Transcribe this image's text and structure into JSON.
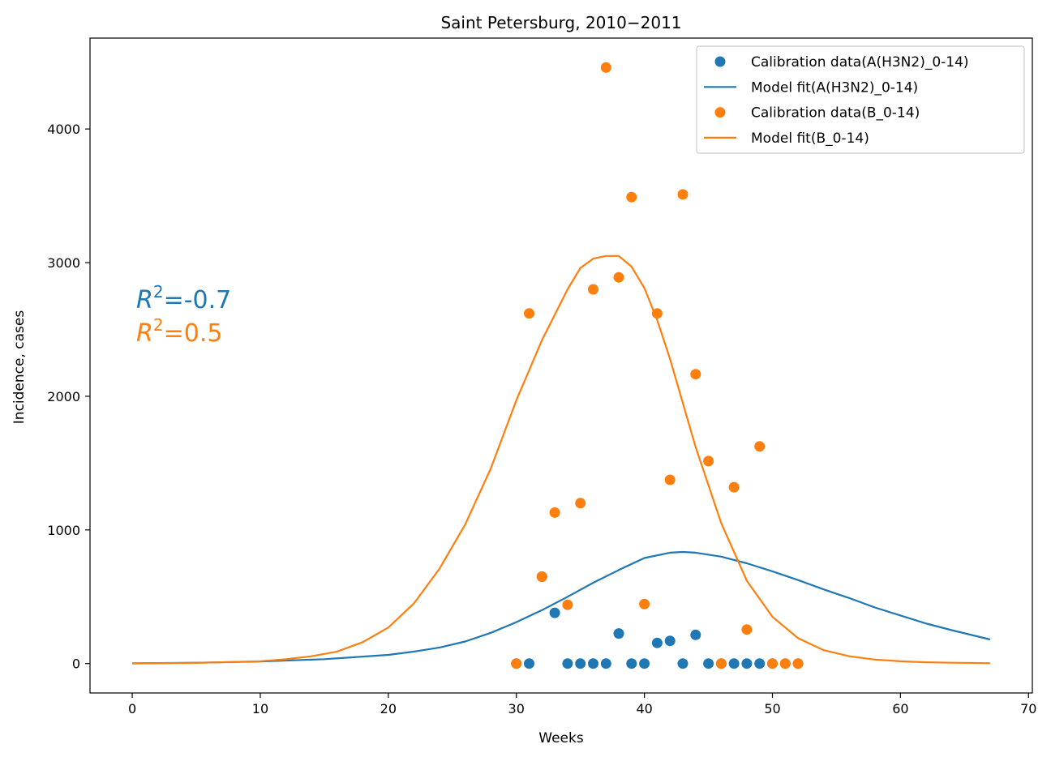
{
  "chart_data": {
    "type": "scatter",
    "title": "Saint Petersburg, 2010−2011",
    "xlabel": "Weeks",
    "ylabel": "Incidence, cases",
    "xlim": [
      -3.3,
      70.3
    ],
    "ylim": [
      -220,
      4680
    ],
    "xticks": [
      0,
      10,
      20,
      30,
      40,
      50,
      60,
      70
    ],
    "yticks": [
      0,
      1000,
      2000,
      3000,
      4000
    ],
    "grid": false,
    "legend_position": "top-right",
    "colors": {
      "blue": "#1f77b4",
      "orange": "#ff7f0e"
    },
    "series": [
      {
        "name": "Calibration data(A(H3N2)_0-14)",
        "kind": "points",
        "color": "#1f77b4",
        "x": [
          30,
          31,
          32,
          33,
          34,
          35,
          36,
          37,
          38,
          39,
          40,
          41,
          42,
          43,
          44,
          45,
          46,
          47,
          48,
          49,
          50,
          51,
          52
        ],
        "y": [
          0,
          0,
          650,
          380,
          0,
          0,
          0,
          0,
          225,
          0,
          0,
          155,
          170,
          0,
          215,
          0,
          0,
          0,
          0,
          0,
          0,
          0,
          0
        ]
      },
      {
        "name": "Model fit(A(H3N2)_0-14)",
        "kind": "line",
        "color": "#1f77b4",
        "x": [
          0,
          5,
          10,
          15,
          20,
          22,
          24,
          26,
          28,
          30,
          32,
          34,
          36,
          38,
          40,
          42,
          43,
          44,
          46,
          48,
          50,
          52,
          54,
          56,
          58,
          60,
          62,
          64,
          67
        ],
        "y": [
          2,
          6,
          15,
          33,
          65,
          90,
          120,
          165,
          230,
          310,
          400,
          500,
          605,
          700,
          790,
          830,
          835,
          830,
          800,
          750,
          690,
          625,
          555,
          490,
          420,
          360,
          300,
          250,
          180
        ]
      },
      {
        "name": "Calibration data(B_0-14)",
        "kind": "points",
        "color": "#ff7f0e",
        "x": [
          30,
          31,
          32,
          33,
          34,
          35,
          36,
          37,
          38,
          39,
          40,
          41,
          42,
          43,
          44,
          45,
          46,
          47,
          48,
          49,
          50,
          51,
          52
        ],
        "y": [
          0,
          2620,
          650,
          1130,
          440,
          1200,
          2800,
          4460,
          2890,
          3490,
          445,
          2620,
          1375,
          3510,
          2165,
          1515,
          0,
          1320,
          255,
          1625,
          0,
          0,
          0
        ]
      },
      {
        "name": "Model fit(B_0-14)",
        "kind": "line",
        "color": "#ff7f0e",
        "x": [
          0,
          5,
          10,
          12,
          14,
          16,
          18,
          20,
          22,
          24,
          26,
          28,
          30,
          32,
          34,
          35,
          36,
          37,
          38,
          39,
          40,
          41,
          42,
          44,
          46,
          48,
          50,
          52,
          54,
          56,
          58,
          60,
          62,
          64,
          67
        ],
        "y": [
          1,
          5,
          18,
          32,
          55,
          90,
          160,
          270,
          450,
          710,
          1040,
          1460,
          1970,
          2420,
          2800,
          2960,
          3030,
          3050,
          3050,
          2970,
          2810,
          2570,
          2280,
          1620,
          1050,
          620,
          350,
          190,
          100,
          55,
          30,
          17,
          10,
          6,
          3
        ]
      }
    ],
    "annotations": [
      {
        "sup_base": "R",
        "sup_exp": "2",
        "text": "=-0.7",
        "color": "#1f77b4"
      },
      {
        "sup_base": "R",
        "sup_exp": "2",
        "text": "=0.5",
        "color": "#ff7f0e"
      }
    ]
  }
}
